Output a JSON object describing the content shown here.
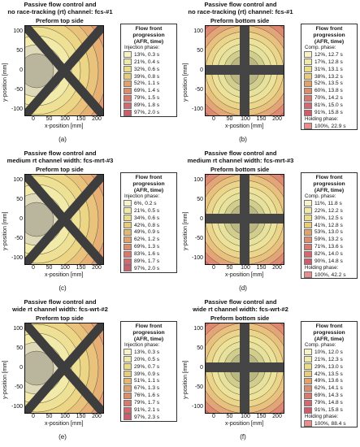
{
  "x_label": "x-position [mm]",
  "y_label": "y-position [mm]",
  "x_ticks": [
    "0",
    "50",
    "100",
    "150",
    "200"
  ],
  "y_ticks": [
    "100",
    "50",
    "0",
    "-50",
    "-100"
  ],
  "legend_title": "Flow front progression (AFR, time)",
  "legend_title_lines": [
    "Flow front",
    "progression",
    "(AFR, time)"
  ],
  "panels": [
    {
      "label": "(a)",
      "title_lines": [
        "Passive flow control and",
        "no race-tracking (rt) channel: fcs-#1"
      ],
      "subtitle": "Preform top side",
      "side": "top",
      "phase1": "Injection phase:",
      "entries": [
        "13%, 0.3 s",
        "21%, 0.4 s",
        "32%, 0.6 s",
        "39%, 0.8 s",
        "52%, 1.1 s",
        "69%, 1.4 s",
        "79%, 1.5 s",
        "89%, 1.8 s",
        "97%, 2.0 s"
      ],
      "phase2": "",
      "hold_entries": []
    },
    {
      "label": "(b)",
      "title_lines": [
        "Passive flow control and",
        "no race-tracking (rt) channel: fcs-#1"
      ],
      "subtitle": "Preform bottom side",
      "side": "bottom",
      "phase1": "Comp. phase:",
      "entries": [
        "12%, 12.7 s",
        "17%, 12.8 s",
        "31%, 13.1 s",
        "38%, 13.2 s",
        "52%, 13.5 s",
        "60%, 13.8 s",
        "70%, 14.2 s",
        "81%, 15.0 s",
        "91%, 15.8 s"
      ],
      "phase2": "Holding phase:",
      "hold_entries": [
        "100%, 22.9 s"
      ]
    },
    {
      "label": "(c)",
      "title_lines": [
        "Passive flow control and",
        "medium rt channel width: fcs-mrt-#3"
      ],
      "subtitle": "Preform top side",
      "side": "top",
      "phase1": "Injection phase:",
      "entries": [
        "6%, 0.2 s",
        "21%, 0.5 s",
        "34%, 0.6 s",
        "42%, 0.8 s",
        "49%, 0.9 s",
        "62%, 1.2 s",
        "69%, 1.3 s",
        "83%, 1.6 s",
        "89%, 1.7 s",
        "97%, 2.0 s"
      ],
      "phase2": "",
      "hold_entries": []
    },
    {
      "label": "(d)",
      "title_lines": [
        "Passive flow control and",
        "medium rt channel width: fcs-mrt-#3"
      ],
      "subtitle": "Preform bottom side",
      "side": "bottom",
      "phase1": "Comp. phase:",
      "entries": [
        "11%, 11.8 s",
        "22%, 12.2 s",
        "30%, 12.5 s",
        "41%, 12.8 s",
        "53%, 13.0 s",
        "59%, 13.2 s",
        "71%, 13.6 s",
        "82%, 14.0 s",
        "90%, 14.8 s"
      ],
      "phase2": "Holding phase:",
      "hold_entries": [
        "100%, 42.2 s"
      ]
    },
    {
      "label": "(e)",
      "title_lines": [
        "Passive flow control and",
        "wide rt channel width: fcs-wrt-#2"
      ],
      "subtitle": "Preform top side",
      "side": "top",
      "phase1": "Injection phase:",
      "entries": [
        "13%, 0.3 s",
        "20%, 0.5 s",
        "29%, 0.7 s",
        "39%, 0.9 s",
        "51%, 1.1 s",
        "67%, 1.3 s",
        "76%, 1.6 s",
        "79%, 1.7 s",
        "91%, 2.1 s",
        "97%, 2.3 s"
      ],
      "phase2": "",
      "hold_entries": []
    },
    {
      "label": "(f)",
      "title_lines": [
        "Passive flow control and",
        "wide rt channel width: fcs-wrt-#2"
      ],
      "subtitle": "Preform bottom side",
      "side": "bottom",
      "phase1": "Comp. phase:",
      "entries": [
        "10%, 12.0 s",
        "21%, 12.3 s",
        "29%, 13.0 s",
        "42%, 13.5 s",
        "49%, 13.6 s",
        "62%, 14.1 s",
        "69%, 14.3 s",
        "79%, 14.8 s",
        "91%, 15.8 s"
      ],
      "phase2": "Holding phase:",
      "hold_entries": [
        "100%, 88.4 s"
      ]
    }
  ]
}
